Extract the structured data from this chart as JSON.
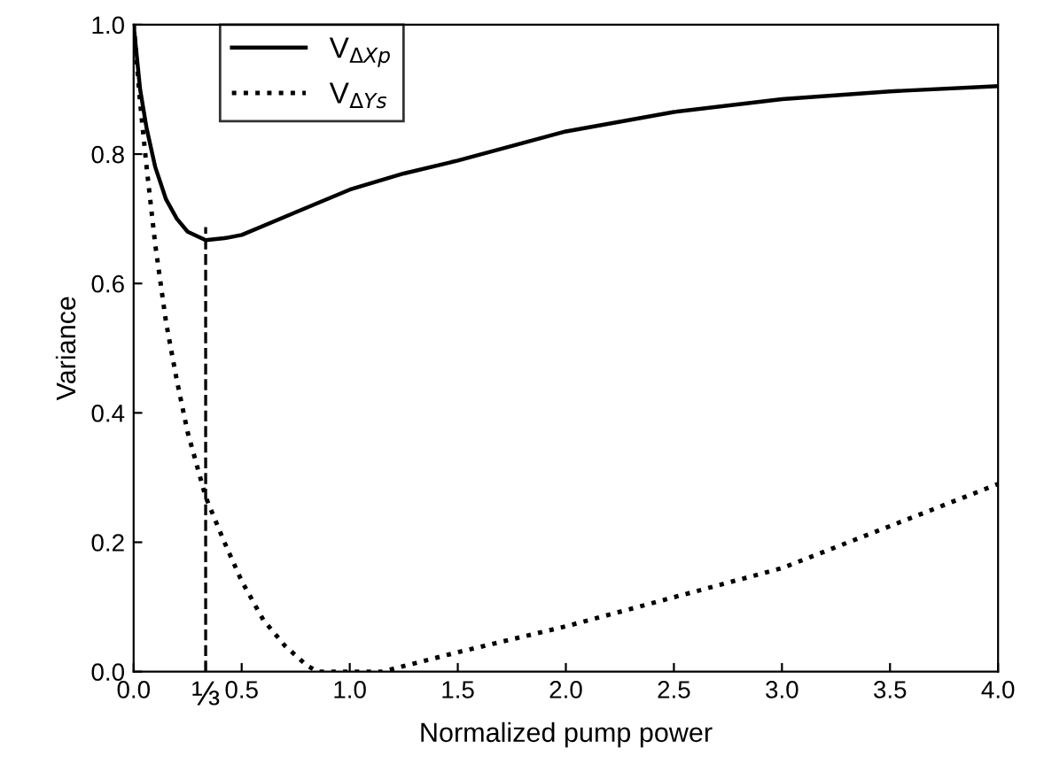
{
  "chart_data": {
    "type": "line",
    "xlabel": "Normalized pump power",
    "ylabel": "Variance",
    "xlim": [
      0,
      4
    ],
    "ylim": [
      0,
      1
    ],
    "xticks": [
      {
        "value": 0,
        "label": "0.0"
      },
      {
        "value": 0.3333,
        "label": "⅓"
      },
      0.5,
      {
        "value": 1,
        "label": "1.0"
      },
      1.5,
      {
        "value": 2,
        "label": "2.0"
      },
      2.5,
      {
        "value": 3,
        "label": "3.0"
      },
      3.5,
      {
        "value": 4,
        "label": "4.0"
      }
    ],
    "yticks": [
      {
        "value": 0,
        "label": "0.0"
      },
      0.2,
      0.4,
      0.6,
      0.8,
      {
        "value": 1,
        "label": "1.0"
      }
    ],
    "grid": false,
    "legend": "top left",
    "series": [
      {
        "name": "V$_{ΔXp}$",
        "color": "#000000",
        "line_style": "solid",
        "x": [
          0,
          0.03,
          0.06,
          0.1,
          0.15,
          0.2,
          0.25,
          0.3333,
          0.42,
          0.5,
          0.75,
          1.0,
          1.25,
          1.5,
          2.0,
          2.5,
          3.0,
          3.5,
          4.0
        ],
        "values": [
          1.0,
          0.9,
          0.84,
          0.78,
          0.73,
          0.7,
          0.68,
          0.667,
          0.67,
          0.675,
          0.71,
          0.745,
          0.77,
          0.79,
          0.835,
          0.865,
          0.885,
          0.897,
          0.905
        ]
      },
      {
        "name": "V$_{ΔYs}$",
        "color": "#000000",
        "line_style": "dotted",
        "x": [
          0,
          0.03,
          0.06,
          0.1,
          0.15,
          0.2,
          0.25,
          0.3333,
          0.42,
          0.5,
          0.6,
          0.7,
          0.8,
          0.85,
          1.15,
          1.5,
          2.0,
          2.5,
          3.0,
          3.5,
          4.0
        ],
        "values": [
          1.0,
          0.88,
          0.78,
          0.66,
          0.54,
          0.45,
          0.37,
          0.27,
          0.2,
          0.14,
          0.08,
          0.04,
          0.01,
          0.0,
          0.0,
          0.03,
          0.07,
          0.115,
          0.16,
          0.225,
          0.29
        ]
      }
    ],
    "ref_lines": [
      {
        "axis": "x",
        "value": 0.3333,
        "line_style": "dashed",
        "color": "#000000"
      }
    ]
  }
}
